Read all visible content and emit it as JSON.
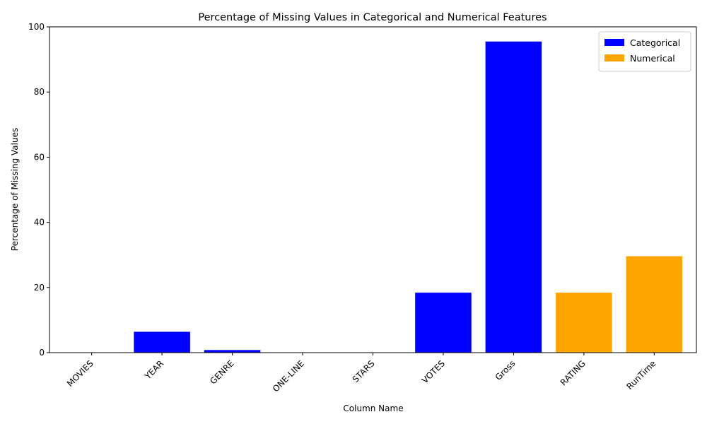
{
  "chart_data": {
    "type": "bar",
    "title": "Percentage of Missing Values in Categorical and Numerical Features",
    "xlabel": "Column Name",
    "ylabel": "Percentage of Missing Values",
    "ylim": [
      0,
      100
    ],
    "yticks": [
      0,
      20,
      40,
      60,
      80,
      100
    ],
    "legend_position": "top-right",
    "grid": false,
    "categories": [
      "MOVIES",
      "YEAR",
      "GENRE",
      "ONE-LINE",
      "STARS",
      "VOTES",
      "Gross",
      "RATING",
      "RunTime"
    ],
    "series": [
      {
        "name": "Categorical",
        "color": "#0000ff",
        "values": [
          0,
          6.4,
          0.8,
          0,
          0,
          18.4,
          95.5,
          null,
          null
        ]
      },
      {
        "name": "Numerical",
        "color": "#ffa500",
        "values": [
          null,
          null,
          null,
          null,
          null,
          null,
          null,
          18.4,
          29.6
        ]
      }
    ]
  }
}
